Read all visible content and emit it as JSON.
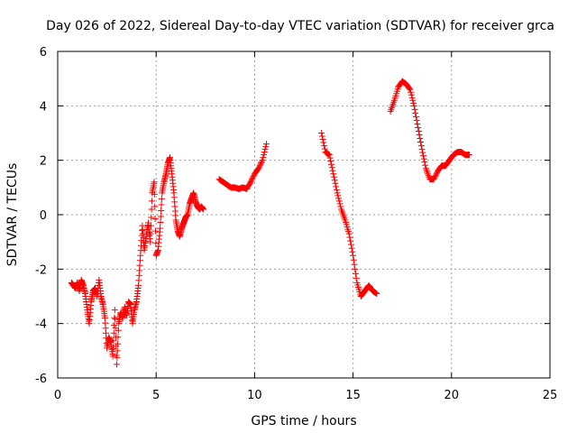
{
  "chart_data": {
    "type": "scatter",
    "title": "Day 026 of 2022, Sidereal Day-to-day VTEC variation (SDTVAR) for receiver grca",
    "xlabel": "GPS time / hours",
    "ylabel": "SDTVAR / TECUs",
    "xlim": [
      0,
      25
    ],
    "ylim": [
      -6,
      6
    ],
    "xticks": [
      0,
      5,
      10,
      15,
      20,
      25
    ],
    "yticks": [
      -6,
      -4,
      -2,
      0,
      2,
      4,
      6
    ],
    "grid": true,
    "marker": "+",
    "series": [
      {
        "name": "SDTVAR",
        "color": "#ff0000",
        "segments": [
          {
            "x": [
              0.7,
              0.8,
              0.9,
              1.0,
              1.1,
              1.2,
              1.3,
              1.4,
              1.5,
              1.6,
              1.7,
              1.8,
              1.9,
              2.0,
              2.1,
              2.2,
              2.3,
              2.4,
              2.5,
              2.6,
              2.7,
              2.8,
              2.9,
              3.0,
              3.1,
              3.2,
              3.3,
              3.4,
              3.5,
              3.6,
              3.7,
              3.8,
              3.9,
              4.0,
              4.1,
              4.2,
              4.3,
              4.4,
              4.5,
              4.6,
              4.7,
              4.8,
              4.9,
              5.0,
              5.1,
              5.2,
              5.3,
              5.4,
              5.5,
              5.6,
              5.7,
              5.8,
              5.9,
              6.0,
              6.1,
              6.2,
              6.3,
              6.4,
              6.5,
              6.6,
              6.7,
              6.8,
              6.9,
              7.0,
              7.1,
              7.2,
              7.3,
              7.4
            ],
            "y": [
              -2.5,
              -2.6,
              -2.7,
              -2.5,
              -2.8,
              -2.4,
              -2.6,
              -2.9,
              -3.5,
              -4.0,
              -3.2,
              -2.8,
              -2.7,
              -3.0,
              -2.4,
              -3.0,
              -3.3,
              -3.8,
              -4.9,
              -4.5,
              -4.7,
              -5.2,
              -3.5,
              -5.5,
              -4.0,
              -3.6,
              -3.8,
              -3.4,
              -3.7,
              -3.2,
              -3.3,
              -4.0,
              -3.5,
              -3.2,
              -2.6,
              -1.5,
              -0.4,
              -1.3,
              -0.8,
              -0.3,
              -1.0,
              0.8,
              1.2,
              -1.5,
              -1.3,
              -0.5,
              0.8,
              1.2,
              1.5,
              1.9,
              2.1,
              1.5,
              0.8,
              -0.2,
              -0.6,
              -0.8,
              -0.5,
              -0.3,
              -0.1,
              0.0,
              0.4,
              0.6,
              0.8,
              0.5,
              0.3,
              0.2,
              0.3,
              0.2
            ]
          },
          {
            "x": [
              8.2,
              8.4,
              8.6,
              8.8,
              9.0,
              9.2,
              9.4,
              9.6,
              9.8,
              10.0,
              10.2,
              10.4,
              10.6
            ],
            "y": [
              1.3,
              1.2,
              1.1,
              1.0,
              1.0,
              0.95,
              1.0,
              0.95,
              1.2,
              1.5,
              1.7,
              2.0,
              2.6
            ]
          },
          {
            "x": [
              13.4,
              13.6,
              13.8,
              14.0,
              14.2,
              14.4,
              14.6,
              14.8,
              15.0,
              15.2,
              15.4,
              15.6,
              15.8,
              16.0,
              16.2
            ],
            "y": [
              3.0,
              2.3,
              2.2,
              1.5,
              0.8,
              0.2,
              -0.2,
              -0.7,
              -1.5,
              -2.5,
              -3.0,
              -2.8,
              -2.6,
              -2.8,
              -2.9
            ]
          },
          {
            "x": [
              16.9,
              17.1,
              17.3,
              17.5,
              17.7,
              17.9,
              18.1,
              18.3,
              18.5,
              18.7,
              18.9,
              19.1,
              19.3,
              19.5,
              19.7,
              19.9,
              20.1,
              20.3,
              20.5,
              20.7,
              20.9
            ],
            "y": [
              3.8,
              4.2,
              4.7,
              4.9,
              4.8,
              4.6,
              4.0,
              3.2,
              2.4,
              1.7,
              1.3,
              1.3,
              1.6,
              1.8,
              1.8,
              2.0,
              2.2,
              2.3,
              2.3,
              2.2,
              2.2
            ]
          }
        ]
      }
    ],
    "xtick_labels": [
      "0",
      "5",
      "10",
      "15",
      "20",
      "25"
    ],
    "ytick_labels": [
      "-6",
      "-4",
      "-2",
      "0",
      "2",
      "4",
      "6"
    ]
  },
  "colors": {
    "points": "#ff0000",
    "axis": "#000000",
    "grid": "#a0a0a0",
    "background": "#ffffff"
  }
}
